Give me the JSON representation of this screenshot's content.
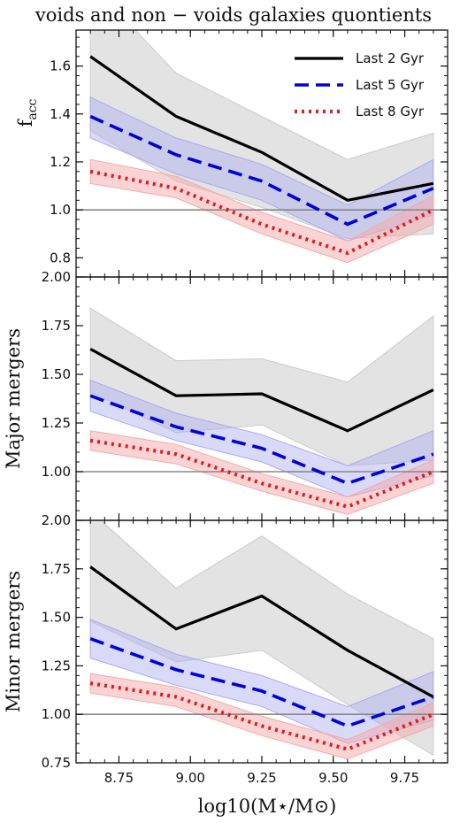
{
  "figure": {
    "title": "voids and non − voids galaxies quontients",
    "xlabel": "log10(M⋆/M⊙)"
  },
  "legend": {
    "placement": "top-right",
    "entries": [
      "Last 2 Gyr",
      "Last 5 Gyr",
      "Last 8 Gyr"
    ]
  },
  "colors": {
    "last2": "#000000",
    "last5": "#0000dd",
    "last8": "#e31a1c",
    "band2": "#cccccc",
    "band5": "#aaaaf0",
    "band8": "#f5a9a9",
    "refline": "#888888"
  },
  "chart_data": [
    {
      "type": "line",
      "panel": "top",
      "ylabel": "f_acc",
      "xlim": [
        8.6,
        9.9
      ],
      "ylim": [
        0.72,
        1.75
      ],
      "yticks": [
        0.8,
        1.0,
        1.2,
        1.4,
        1.6
      ],
      "ytick_labels": [
        "0.8",
        "1.0",
        "1.2",
        "1.4",
        "1.6"
      ],
      "xticks": [
        8.75,
        9.0,
        9.25,
        9.5,
        9.75
      ],
      "hline": 1.0,
      "x": [
        8.65,
        8.95,
        9.25,
        9.55,
        9.85
      ],
      "series": [
        {
          "name": "Last 2 Gyr",
          "values": [
            1.64,
            1.39,
            1.24,
            1.04,
            1.11
          ],
          "lower": [
            1.33,
            1.12,
            1.01,
            0.88,
            0.9
          ],
          "upper": [
            1.95,
            1.57,
            1.39,
            1.21,
            1.32
          ]
        },
        {
          "name": "Last 5 Gyr",
          "values": [
            1.39,
            1.23,
            1.12,
            0.94,
            1.09
          ],
          "lower": [
            1.3,
            1.15,
            1.04,
            0.87,
            0.98
          ],
          "upper": [
            1.47,
            1.3,
            1.19,
            1.02,
            1.21
          ]
        },
        {
          "name": "Last 8 Gyr",
          "values": [
            1.16,
            1.09,
            0.94,
            0.82,
            1.0
          ],
          "lower": [
            1.11,
            1.05,
            0.9,
            0.78,
            0.94
          ],
          "upper": [
            1.21,
            1.14,
            0.99,
            0.87,
            1.06
          ]
        }
      ]
    },
    {
      "type": "line",
      "panel": "middle",
      "ylabel": "Major mergers",
      "xlim": [
        8.6,
        9.9
      ],
      "ylim": [
        0.75,
        2.0
      ],
      "yticks": [
        1.0,
        1.25,
        1.5,
        1.75,
        2.0
      ],
      "ytick_labels": [
        "1.00",
        "1.25",
        "1.50",
        "1.75",
        "2.00"
      ],
      "xticks": [
        8.75,
        9.0,
        9.25,
        9.5,
        9.75
      ],
      "hline": 1.0,
      "x": [
        8.65,
        8.95,
        9.25,
        9.55,
        9.85
      ],
      "series": [
        {
          "name": "Last 2 Gyr",
          "values": [
            1.63,
            1.39,
            1.4,
            1.21,
            1.42
          ],
          "lower": [
            1.41,
            1.2,
            1.24,
            1.03,
            1.06
          ],
          "upper": [
            1.84,
            1.57,
            1.58,
            1.46,
            1.8
          ]
        },
        {
          "name": "Last 5 Gyr",
          "values": [
            1.39,
            1.23,
            1.12,
            0.94,
            1.09
          ],
          "lower": [
            1.31,
            1.16,
            1.05,
            0.87,
            0.98
          ],
          "upper": [
            1.47,
            1.3,
            1.19,
            1.03,
            1.21
          ]
        },
        {
          "name": "Last 8 Gyr",
          "values": [
            1.16,
            1.09,
            0.94,
            0.82,
            1.0
          ],
          "lower": [
            1.11,
            1.04,
            0.9,
            0.78,
            0.94
          ],
          "upper": [
            1.21,
            1.14,
            0.99,
            0.87,
            1.06
          ]
        }
      ]
    },
    {
      "type": "line",
      "panel": "bottom",
      "ylabel": "Minor mergers",
      "xlim": [
        8.6,
        9.9
      ],
      "ylim": [
        0.75,
        2.0
      ],
      "yticks": [
        0.75,
        1.0,
        1.25,
        1.5,
        1.75,
        2.0
      ],
      "ytick_labels": [
        "0.75",
        "1.00",
        "1.25",
        "1.50",
        "1.75",
        "2.00"
      ],
      "xticks": [
        8.75,
        9.0,
        9.25,
        9.5,
        9.75
      ],
      "xtick_labels": [
        "8.75",
        "9.00",
        "9.25",
        "9.50",
        "9.75"
      ],
      "hline": 1.0,
      "x": [
        8.65,
        8.95,
        9.25,
        9.55,
        9.85
      ],
      "series": [
        {
          "name": "Last 2 Gyr",
          "values": [
            1.76,
            1.44,
            1.61,
            1.33,
            1.09
          ],
          "lower": [
            1.48,
            1.27,
            1.33,
            1.05,
            0.79
          ],
          "upper": [
            2.05,
            1.65,
            1.92,
            1.62,
            1.39
          ]
        },
        {
          "name": "Last 5 Gyr",
          "values": [
            1.39,
            1.23,
            1.12,
            0.94,
            1.09
          ],
          "lower": [
            1.29,
            1.15,
            1.04,
            0.85,
            0.97
          ],
          "upper": [
            1.49,
            1.31,
            1.2,
            1.04,
            1.22
          ]
        },
        {
          "name": "Last 8 Gyr",
          "values": [
            1.16,
            1.09,
            0.94,
            0.82,
            1.0
          ],
          "lower": [
            1.11,
            1.04,
            0.89,
            0.77,
            0.94
          ],
          "upper": [
            1.21,
            1.14,
            0.99,
            0.87,
            1.06
          ]
        }
      ]
    }
  ]
}
